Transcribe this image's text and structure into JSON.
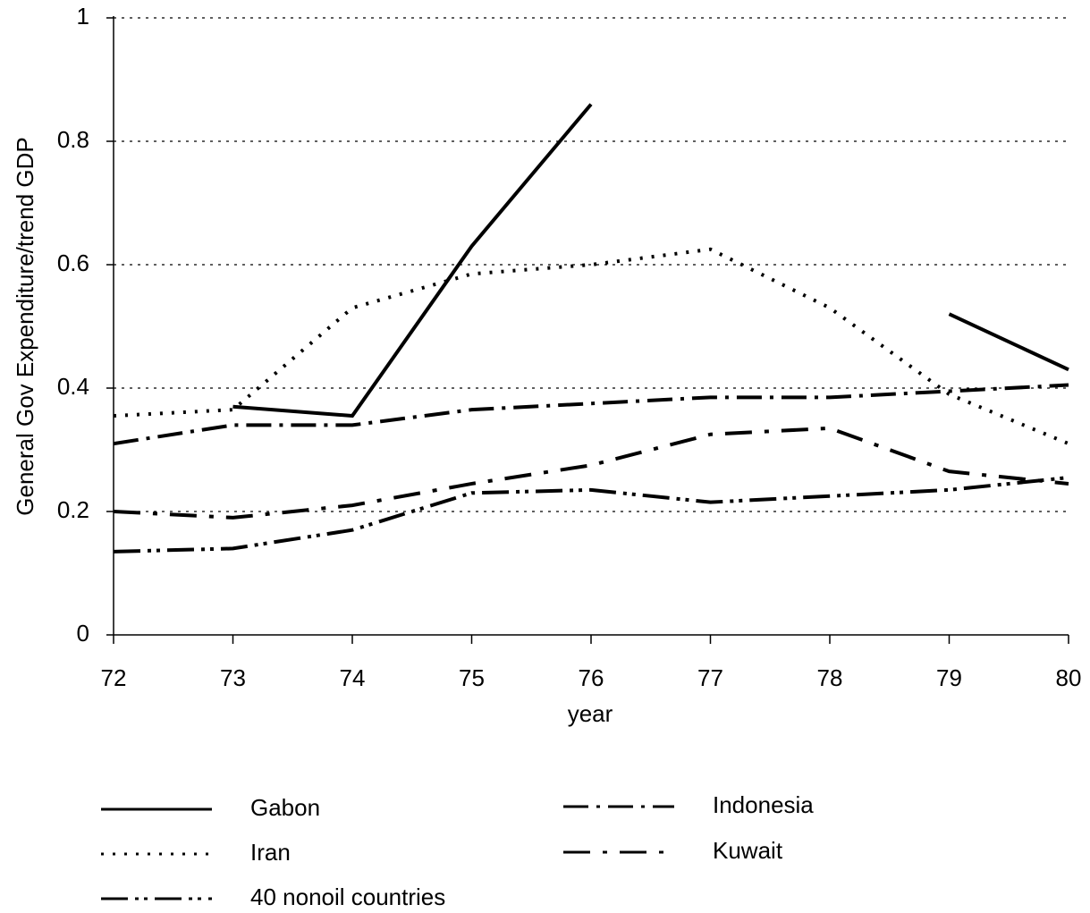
{
  "chart_data": {
    "type": "line",
    "x_label": "year",
    "y_label": "General Gov Expenditure/trend GDP",
    "x": [
      72,
      73,
      74,
      75,
      76,
      77,
      78,
      79,
      80
    ],
    "xlim": [
      72,
      80
    ],
    "xticks": [
      72,
      73,
      74,
      75,
      76,
      77,
      78,
      79,
      80
    ],
    "ylim": [
      0,
      1
    ],
    "yticks": [
      0,
      0.2,
      0.4,
      0.6,
      0.8,
      1
    ],
    "grid": true,
    "series": [
      {
        "name": "Gabon",
        "color": "#000000",
        "values": [
          null,
          0.37,
          0.355,
          0.63,
          0.86,
          null,
          null,
          0.52,
          0.43
        ]
      },
      {
        "name": "Iran",
        "color": "#000000",
        "values": [
          0.355,
          0.365,
          0.53,
          0.585,
          0.6,
          0.625,
          0.53,
          0.39,
          0.31
        ]
      },
      {
        "name": "40 nonoil countries",
        "color": "#000000",
        "values": [
          0.135,
          0.14,
          0.17,
          0.23,
          0.235,
          0.215,
          0.225,
          0.235,
          0.255
        ]
      },
      {
        "name": "Indonesia",
        "color": "#000000",
        "values": [
          0.31,
          0.34,
          0.34,
          0.365,
          0.375,
          0.385,
          0.385,
          0.395,
          0.405
        ]
      },
      {
        "name": "Kuwait",
        "color": "#000000",
        "values": [
          0.2,
          0.19,
          0.21,
          0.245,
          0.275,
          0.325,
          0.335,
          0.265,
          0.245
        ]
      }
    ]
  }
}
